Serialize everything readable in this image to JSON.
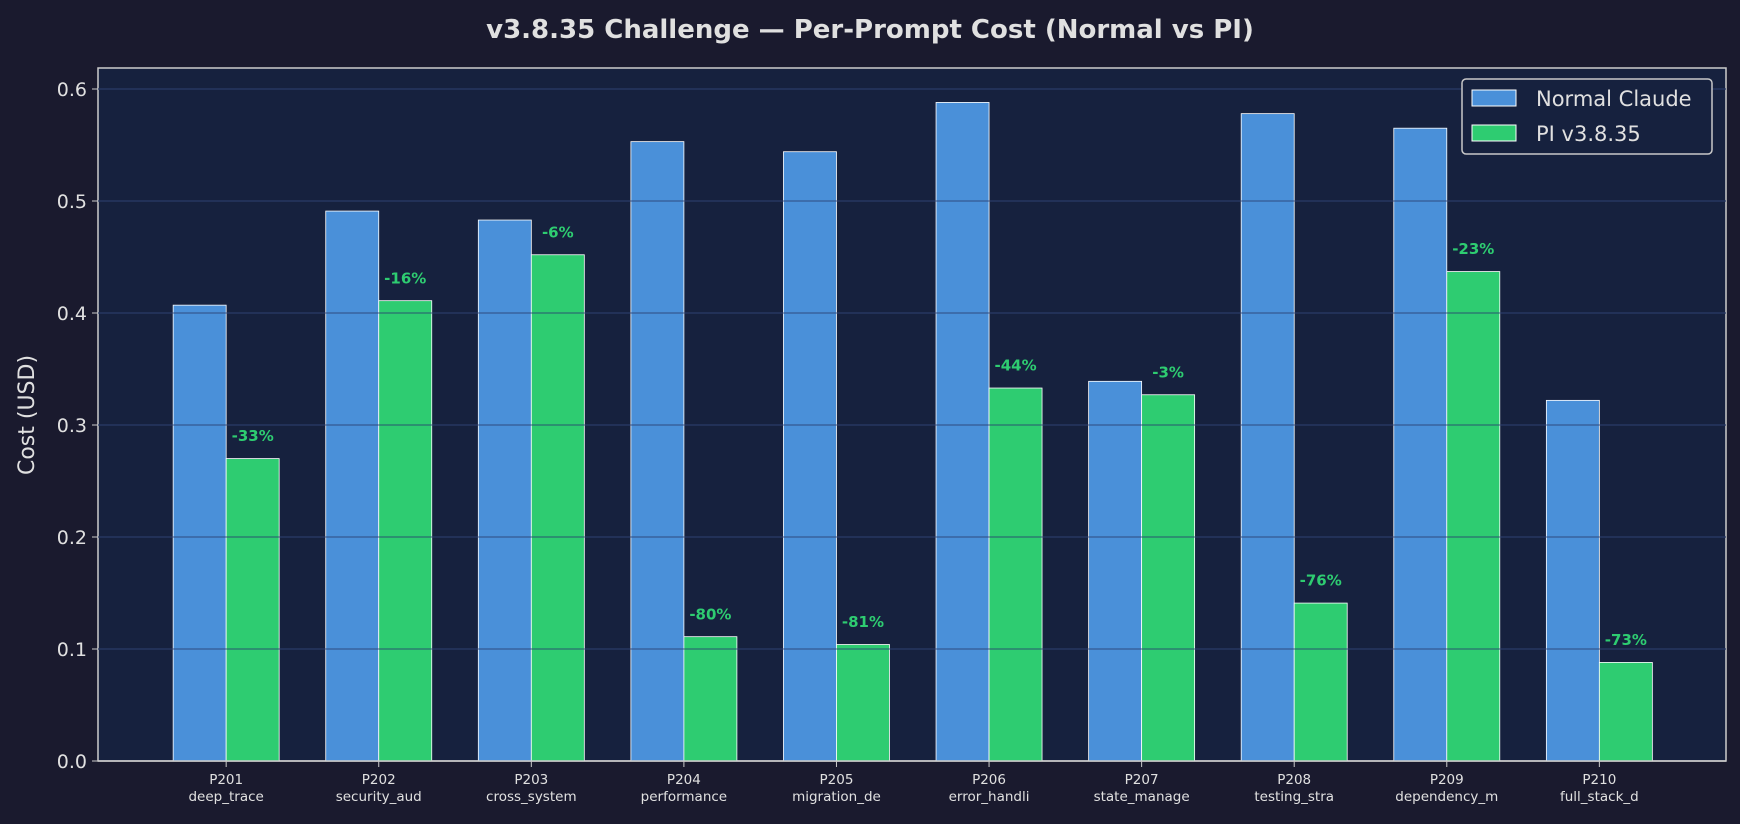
{
  "chart_data": {
    "type": "bar",
    "title": "v3.8.35 Challenge — Per-Prompt Cost (Normal vs PI)",
    "xlabel": "",
    "ylabel": "Cost (USD)",
    "ylim": [
      0,
      0.62
    ],
    "yticks": [
      "0.0",
      "0.1",
      "0.2",
      "0.3",
      "0.4",
      "0.5",
      "0.6"
    ],
    "grid": true,
    "legend_position": "top-right",
    "categories": [
      "P201",
      "P202",
      "P203",
      "P204",
      "P205",
      "P206",
      "P207",
      "P208",
      "P209",
      "P210"
    ],
    "subcategories": [
      "deep_trace",
      "security_aud",
      "cross_system",
      "performance",
      "migration_de",
      "error_handli",
      "state_manage",
      "testing_stra",
      "dependency_m",
      "full_stack_d"
    ],
    "series": [
      {
        "name": "Normal Claude",
        "color": "#4a90d9",
        "values": [
          0.407,
          0.491,
          0.483,
          0.553,
          0.544,
          0.588,
          0.339,
          0.578,
          0.565,
          0.322
        ]
      },
      {
        "name": "PI v3.8.35",
        "color": "#2ecc71",
        "values": [
          0.27,
          0.411,
          0.452,
          0.111,
          0.104,
          0.333,
          0.327,
          0.141,
          0.437,
          0.088
        ]
      }
    ],
    "annotations": [
      "-33%",
      "-16%",
      "-6%",
      "-80%",
      "-81%",
      "-44%",
      "-3%",
      "-76%",
      "-23%",
      "-73%"
    ]
  }
}
